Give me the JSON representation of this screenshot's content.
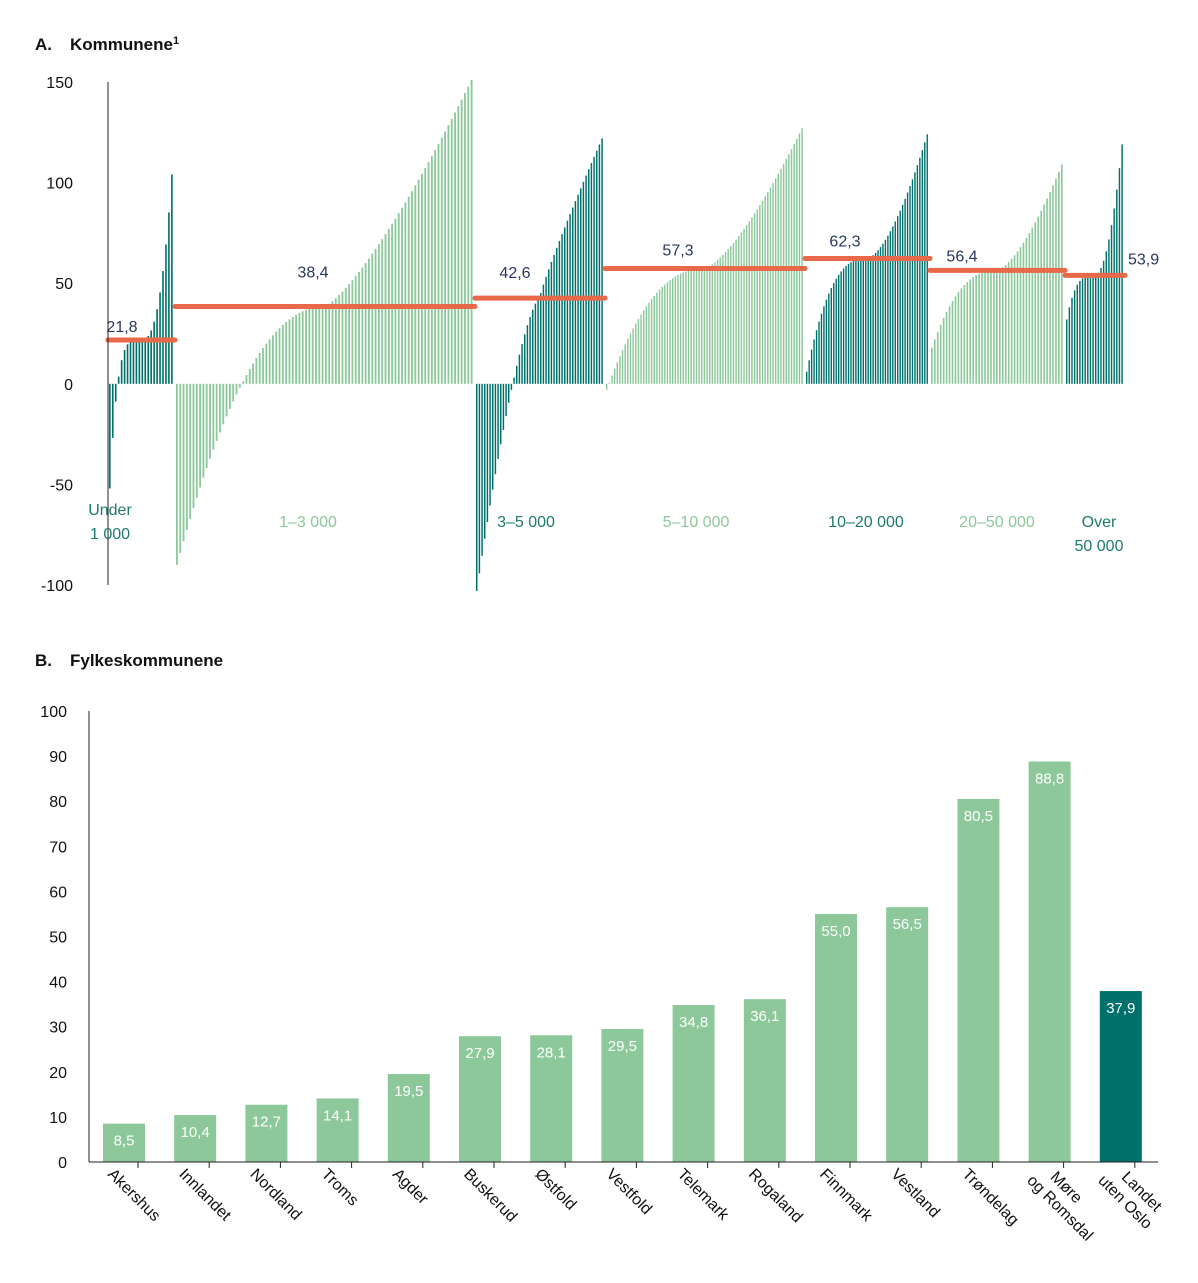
{
  "colors": {
    "dark": "#00706a",
    "light": "#8cc89a",
    "avg": "#e8684a",
    "avg_label": "#27375f",
    "axis": "#222222",
    "dark_label": "#1f7a6e",
    "light_label": "#8cc89a"
  },
  "chart_data": [
    {
      "id": "A",
      "type": "bar",
      "title_letter": "A.",
      "title": "Kommunene",
      "title_sup": "1",
      "ylim": [
        -100,
        150
      ],
      "yticks": [
        "150",
        "100",
        "50",
        "0",
        "-50",
        "-100"
      ],
      "ytick_values": [
        150,
        100,
        50,
        0,
        -50,
        -100
      ],
      "groups": [
        {
          "label_lines": [
            "Under",
            "1 000"
          ],
          "average": 21.8,
          "average_label": "21,8",
          "shade": "dark",
          "count": 22,
          "min": -52,
          "max": 104,
          "shape": 2.6
        },
        {
          "label_lines": [
            "1–3 000"
          ],
          "average": 38.4,
          "average_label": "38,4",
          "shade": "light",
          "count": 90,
          "min": -90,
          "max": 151,
          "shape": 1.3
        },
        {
          "label_lines": [
            "3–5 000"
          ],
          "average": 42.6,
          "average_label": "42,6",
          "shade": "dark",
          "count": 48,
          "min": -103,
          "max": 122,
          "shape": 0.9
        },
        {
          "label_lines": [
            "5–10 000"
          ],
          "average": 57.3,
          "average_label": "57,3",
          "shade": "light",
          "count": 75,
          "min": -3,
          "max": 127,
          "shape": 1.4
        },
        {
          "label_lines": [
            "10–20 000"
          ],
          "average": 62.3,
          "average_label": "62,3",
          "shade": "dark",
          "count": 50,
          "min": 6,
          "max": 124,
          "shape": 1.6
        },
        {
          "label_lines": [
            "20–50 000"
          ],
          "average": 56.4,
          "average_label": "56,4",
          "shade": "light",
          "count": 45,
          "min": 18,
          "max": 109,
          "shape": 1.5
        },
        {
          "label_lines": [
            "Over",
            "50 000"
          ],
          "average": 53.9,
          "average_label": "53,9",
          "shade": "dark",
          "count": 22,
          "min": 32,
          "max": 119,
          "shape": 2.0
        }
      ]
    },
    {
      "id": "B",
      "type": "bar",
      "title_letter": "B.",
      "title": "Fylkeskommunene",
      "ylim": [
        0,
        100
      ],
      "yticks": [
        "100",
        "90",
        "80",
        "70",
        "60",
        "50",
        "40",
        "30",
        "20",
        "10",
        "0"
      ],
      "ytick_values": [
        100,
        90,
        80,
        70,
        60,
        50,
        40,
        30,
        20,
        10,
        0
      ],
      "categories": [
        [
          "Akershus"
        ],
        [
          "Innlandet"
        ],
        [
          "Nordland"
        ],
        [
          "Troms"
        ],
        [
          "Agder"
        ],
        [
          "Buskerud"
        ],
        [
          "Østfold"
        ],
        [
          "Vestfold"
        ],
        [
          "Telemark"
        ],
        [
          "Rogaland"
        ],
        [
          "Finnmark"
        ],
        [
          "Vestland"
        ],
        [
          "Trøndelag"
        ],
        [
          "Møre",
          "og Romsdal"
        ],
        [
          "Landet",
          "uten Oslo"
        ]
      ],
      "values": [
        8.5,
        10.4,
        12.7,
        14.1,
        19.5,
        27.9,
        28.1,
        29.5,
        34.8,
        36.1,
        55.0,
        56.5,
        80.5,
        88.8,
        37.9
      ],
      "value_labels": [
        "8,5",
        "10,4",
        "12,7",
        "14,1",
        "19,5",
        "27,9",
        "28,1",
        "29,5",
        "34,8",
        "36,1",
        "55,0",
        "56,5",
        "80,5",
        "88,8",
        "37,9"
      ],
      "shades": [
        "light",
        "light",
        "light",
        "light",
        "light",
        "light",
        "light",
        "light",
        "light",
        "light",
        "light",
        "light",
        "light",
        "light",
        "dark"
      ]
    }
  ]
}
